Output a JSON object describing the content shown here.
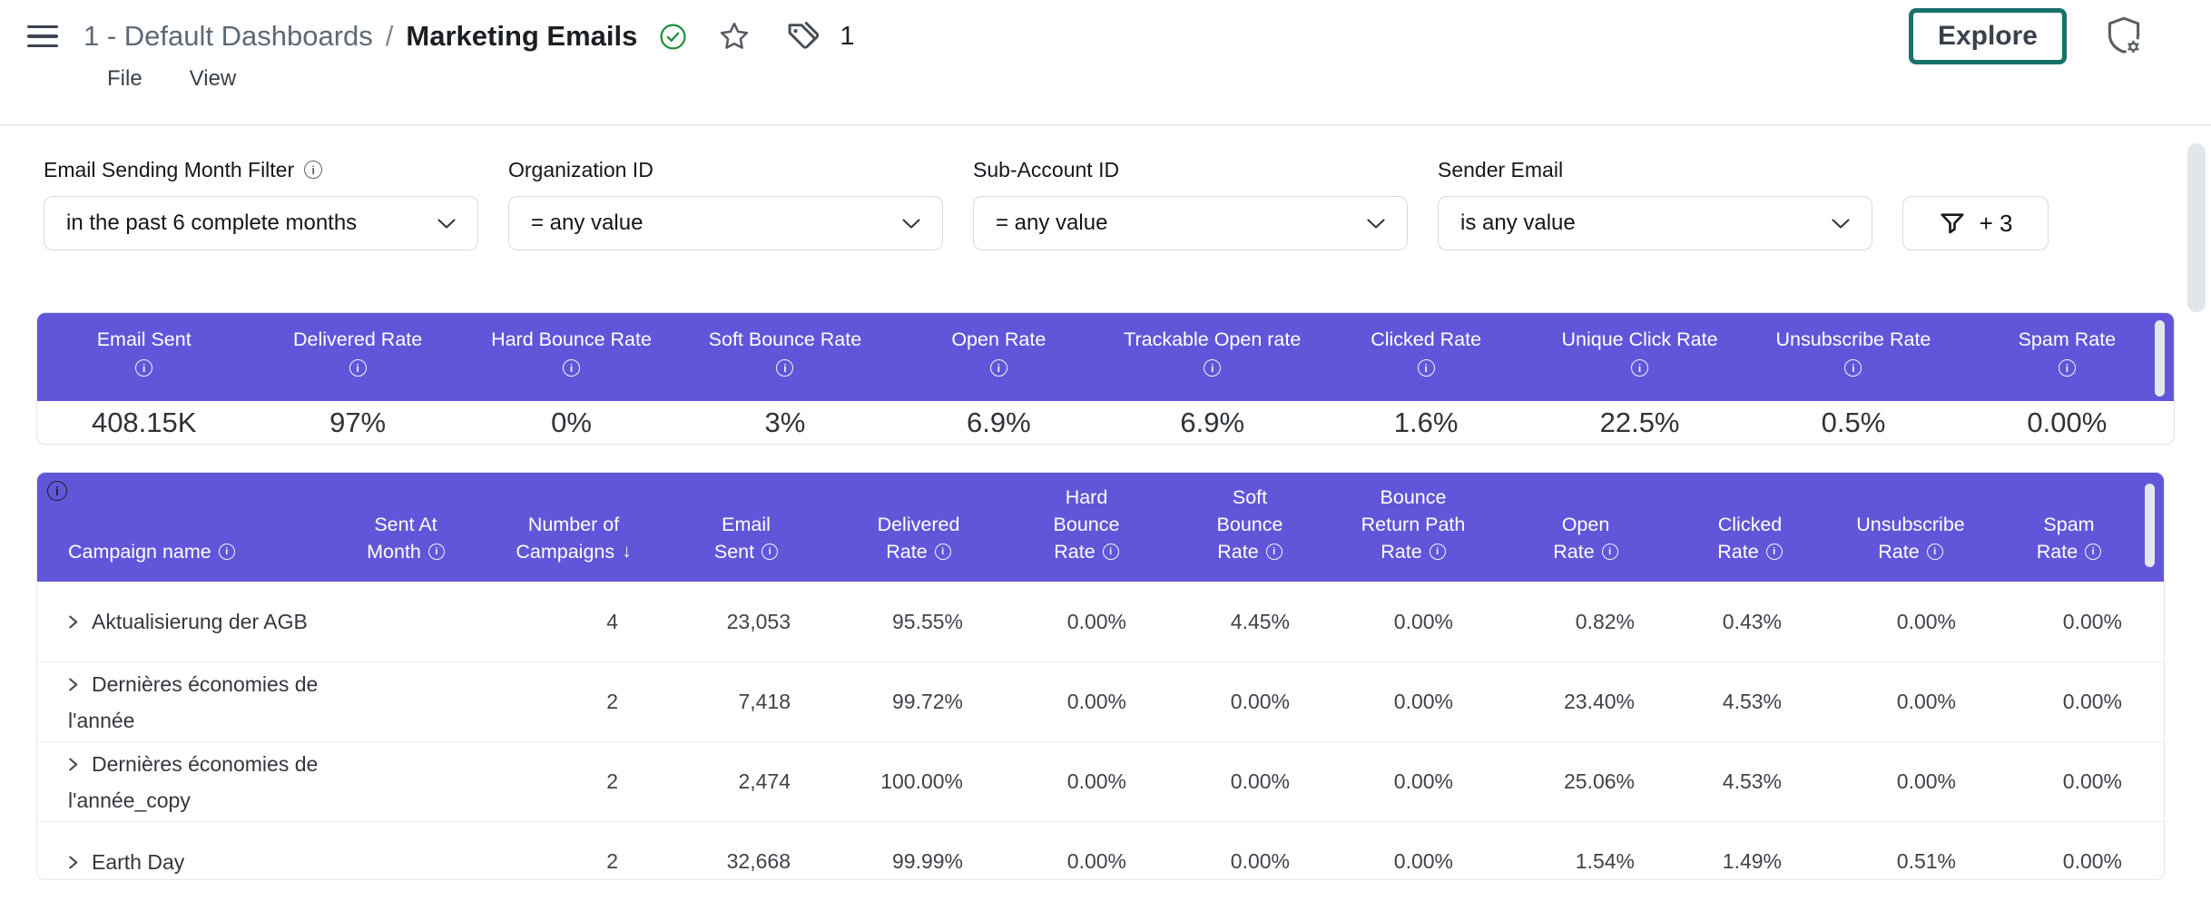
{
  "colors": {
    "accent_purple": "#6156D9",
    "explore_teal": "#17726B",
    "check_green": "#1E8E3E"
  },
  "header": {
    "breadcrumb": "1 - Default Dashboards",
    "separator": "/",
    "title": "Marketing Emails",
    "tag_count": "1",
    "menu_file": "File",
    "menu_view": "View",
    "explore_label": "Explore"
  },
  "filters": {
    "items": [
      {
        "label": "Email Sending Month Filter",
        "info": true,
        "value": "in the past 6 complete months"
      },
      {
        "label": "Organization ID",
        "info": false,
        "value": "= any value"
      },
      {
        "label": "Sub-Account ID",
        "info": false,
        "value": "= any value"
      },
      {
        "label": "Sender Email",
        "info": false,
        "value": "is any value"
      }
    ],
    "more_label": "+ 3"
  },
  "kpi_summary": {
    "items": [
      {
        "label": "Email Sent",
        "value": "408.15K"
      },
      {
        "label": "Delivered Rate",
        "value": "97%"
      },
      {
        "label": "Hard Bounce Rate",
        "value": "0%"
      },
      {
        "label": "Soft Bounce Rate",
        "value": "3%"
      },
      {
        "label": "Open Rate",
        "value": "6.9%"
      },
      {
        "label": "Trackable Open rate",
        "value": "6.9%"
      },
      {
        "label": "Clicked Rate",
        "value": "1.6%"
      },
      {
        "label": "Unique Click Rate",
        "value": "22.5%"
      },
      {
        "label": "Unsubscribe Rate",
        "value": "0.5%"
      },
      {
        "label": "Spam Rate",
        "value": "0.00%"
      }
    ]
  },
  "table": {
    "columns": [
      {
        "lines": [
          "Campaign name"
        ],
        "suffix": "info"
      },
      {
        "lines": [
          "Sent At",
          "Month"
        ],
        "suffix": "info"
      },
      {
        "lines": [
          "Number of",
          "Campaigns"
        ],
        "suffix": "sort"
      },
      {
        "lines": [
          "Email",
          "Sent"
        ],
        "suffix": "info"
      },
      {
        "lines": [
          "Delivered",
          "Rate"
        ],
        "suffix": "info"
      },
      {
        "lines": [
          "Hard",
          "Bounce",
          "Rate"
        ],
        "suffix": "info"
      },
      {
        "lines": [
          "Soft",
          "Bounce",
          "Rate"
        ],
        "suffix": "info"
      },
      {
        "lines": [
          "Bounce",
          "Return Path",
          "Rate"
        ],
        "suffix": "info"
      },
      {
        "lines": [
          "Open",
          "Rate"
        ],
        "suffix": "info"
      },
      {
        "lines": [
          "Clicked",
          "Rate"
        ],
        "suffix": "info"
      },
      {
        "lines": [
          "Unsubscribe",
          "Rate"
        ],
        "suffix": "info"
      },
      {
        "lines": [
          "Spam",
          "Rate"
        ],
        "suffix": "info"
      }
    ],
    "rows": [
      {
        "name": "Aktualisierung der AGB",
        "values": [
          "",
          "4",
          "23,053",
          "95.55%",
          "0.00%",
          "4.45%",
          "0.00%",
          "0.82%",
          "0.43%",
          "0.00%",
          "0.00%"
        ]
      },
      {
        "name": "Dernières économies de l'année",
        "values": [
          "",
          "2",
          "7,418",
          "99.72%",
          "0.00%",
          "0.00%",
          "0.00%",
          "23.40%",
          "4.53%",
          "0.00%",
          "0.00%"
        ]
      },
      {
        "name": "Dernières économies de l'année_copy",
        "values": [
          "",
          "2",
          "2,474",
          "100.00%",
          "0.00%",
          "0.00%",
          "0.00%",
          "25.06%",
          "4.53%",
          "0.00%",
          "0.00%"
        ]
      },
      {
        "name": "Earth Day",
        "values": [
          "",
          "2",
          "32,668",
          "99.99%",
          "0.00%",
          "0.00%",
          "0.00%",
          "1.54%",
          "1.49%",
          "0.51%",
          "0.00%"
        ]
      }
    ]
  }
}
